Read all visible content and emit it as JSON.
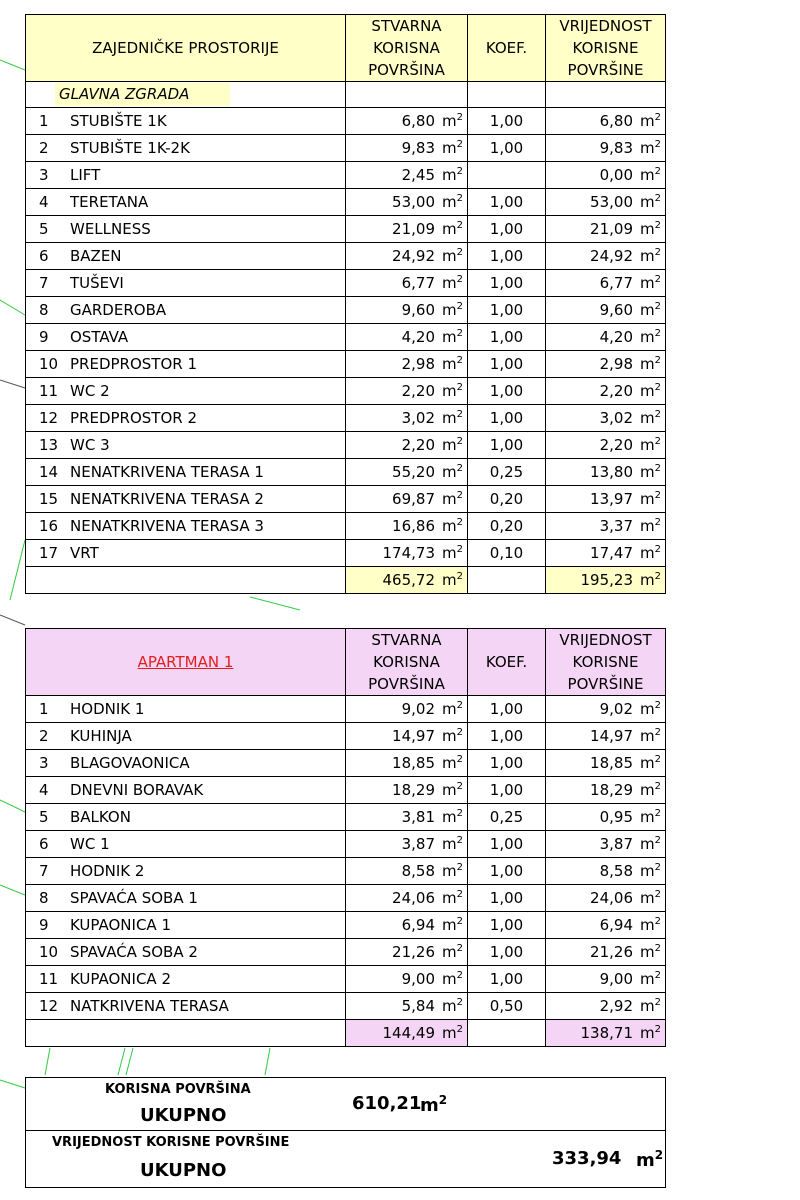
{
  "unit": "m",
  "unit_power": "2",
  "tables": [
    {
      "header": {
        "title": "ZAJEDNIČKE PROSTORIJE",
        "area": "STVARNA KORISNA POVRŠINA",
        "koef": "KOEF.",
        "value": "VRIJEDNOST KORISNE POVRŠINE"
      },
      "section": "GLAVNA ZGRADA",
      "rows": [
        {
          "no": "1",
          "name": "STUBIŠTE 1K",
          "area": "6,80",
          "koef": "1,00",
          "value": "6,80"
        },
        {
          "no": "2",
          "name": "STUBIŠTE 1K-2K",
          "area": "9,83",
          "koef": "1,00",
          "value": "9,83"
        },
        {
          "no": "3",
          "name": "LIFT",
          "area": "2,45",
          "koef": null,
          "value": "0,00"
        },
        {
          "no": "4",
          "name": "TERETANA",
          "area": "53,00",
          "koef": "1,00",
          "value": "53,00"
        },
        {
          "no": "5",
          "name": "WELLNESS",
          "area": "21,09",
          "koef": "1,00",
          "value": "21,09"
        },
        {
          "no": "6",
          "name": "BAZEN",
          "area": "24,92",
          "koef": "1,00",
          "value": "24,92"
        },
        {
          "no": "7",
          "name": "TUŠEVI",
          "area": "6,77",
          "koef": "1,00",
          "value": "6,77"
        },
        {
          "no": "8",
          "name": "GARDEROBA",
          "area": "9,60",
          "koef": "1,00",
          "value": "9,60"
        },
        {
          "no": "9",
          "name": "OSTAVA",
          "area": "4,20",
          "koef": "1,00",
          "value": "4,20"
        },
        {
          "no": "10",
          "name": "PREDPROSTOR 1",
          "area": "2,98",
          "koef": "1,00",
          "value": "2,98"
        },
        {
          "no": "11",
          "name": "WC 2",
          "area": "2,20",
          "koef": "1,00",
          "value": "2,20"
        },
        {
          "no": "12",
          "name": "PREDPROSTOR 2",
          "area": "3,02",
          "koef": "1,00",
          "value": "3,02"
        },
        {
          "no": "13",
          "name": "WC 3",
          "area": "2,20",
          "koef": "1,00",
          "value": "2,20"
        },
        {
          "no": "14",
          "name": "NENATKRIVENA TERASA 1",
          "area": "55,20",
          "koef": "0,25",
          "value": "13,80"
        },
        {
          "no": "15",
          "name": "NENATKRIVENA TERASA 2",
          "area": "69,87",
          "koef": "0,20",
          "value": "13,97"
        },
        {
          "no": "16",
          "name": "NENATKRIVENA TERASA 3",
          "area": "16,86",
          "koef": "0,20",
          "value": "3,37"
        },
        {
          "no": "17",
          "name": "VRT",
          "area": "174,73",
          "koef": "0,10",
          "value": "17,47"
        }
      ],
      "total": {
        "area": "465,72",
        "value": "195,23"
      }
    },
    {
      "header": {
        "title": "APARTMAN 1",
        "area": "STVARNA KORISNA POVRŠINA",
        "koef": "KOEF.",
        "value": "VRIJEDNOST KORISNE POVRŠINE"
      },
      "rows": [
        {
          "no": "1",
          "name": "HODNIK 1",
          "area": "9,02",
          "koef": "1,00",
          "value": "9,02"
        },
        {
          "no": "2",
          "name": "KUHINJA",
          "area": "14,97",
          "koef": "1,00",
          "value": "14,97"
        },
        {
          "no": "3",
          "name": "BLAGOVAONICA",
          "area": "18,85",
          "koef": "1,00",
          "value": "18,85"
        },
        {
          "no": "4",
          "name": "DNEVNI BORAVAK",
          "area": "18,29",
          "koef": "1,00",
          "value": "18,29"
        },
        {
          "no": "5",
          "name": "BALKON",
          "area": "3,81",
          "koef": "0,25",
          "value": "0,95"
        },
        {
          "no": "6",
          "name": "WC 1",
          "area": "3,87",
          "koef": "1,00",
          "value": "3,87"
        },
        {
          "no": "7",
          "name": "HODNIK 2",
          "area": "8,58",
          "koef": "1,00",
          "value": "8,58"
        },
        {
          "no": "8",
          "name": "SPAVAĆA SOBA 1",
          "area": "24,06",
          "koef": "1,00",
          "value": "24,06"
        },
        {
          "no": "9",
          "name": "KUPAONICA 1",
          "area": "6,94",
          "koef": "1,00",
          "value": "6,94"
        },
        {
          "no": "10",
          "name": "SPAVAĆA SOBA 2",
          "area": "21,26",
          "koef": "1,00",
          "value": "21,26"
        },
        {
          "no": "11",
          "name": "KUPAONICA 2",
          "area": "9,00",
          "koef": "1,00",
          "value": "9,00"
        },
        {
          "no": "12",
          "name": "NATKRIVENA TERASA",
          "area": "5,84",
          "koef": "0,50",
          "value": "2,92"
        }
      ],
      "total": {
        "area": "144,49",
        "value": "138,71"
      }
    }
  ],
  "summary": {
    "area_label": "KORISNA POVRŠINA",
    "area_total_label": "UKUPNO",
    "area_total": "610,21",
    "value_label": "VRIJEDNOST KORISNE POVRŠINE",
    "value_total_label": "UKUPNO",
    "value_total": "333,94"
  }
}
